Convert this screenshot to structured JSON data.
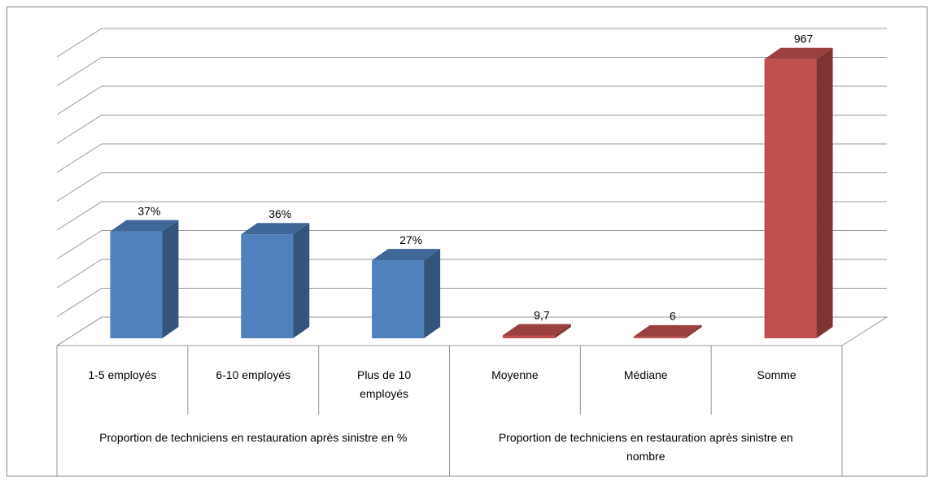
{
  "chart_data": {
    "type": "bar3d",
    "categories": [
      "1-5 employés",
      "6-10 employés",
      "Plus de 10 employés",
      "Moyenne",
      "Médiane",
      "Somme"
    ],
    "groups": [
      {
        "label": "Proportion de techniciens en restauration après sinistre en %",
        "span": [
          0,
          2
        ]
      },
      {
        "label": "Proportion de techniciens en restauration après sinistre en nombre",
        "span": [
          3,
          5
        ]
      }
    ],
    "series": [
      {
        "color": "#4f81bd",
        "values": [
          37,
          36,
          27,
          null,
          null,
          null
        ],
        "value_labels": [
          "37%",
          "36%",
          "27%",
          null,
          null,
          null
        ]
      },
      {
        "color": "#c0504d",
        "axis": "y2",
        "values": [
          null,
          null,
          null,
          9.7,
          6,
          967
        ],
        "value_labels": [
          null,
          null,
          null,
          "9,7",
          "6",
          "967"
        ]
      }
    ],
    "ylim": [
      0,
      100
    ],
    "yticks": [
      0,
      10,
      20,
      30,
      40,
      50,
      60,
      70,
      80,
      90,
      100
    ],
    "y2lim": [
      0,
      1000
    ],
    "grid": true
  }
}
